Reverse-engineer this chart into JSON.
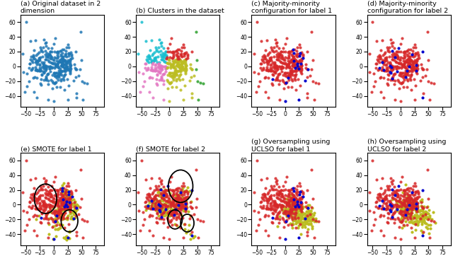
{
  "title_a": "(a) Original dataset in 2\ndimension",
  "title_b": "(b) Clusters in the dataset",
  "title_c": "(c) Majority-minority\nconfiguration for label 1",
  "title_d": "(d) Majority-minority\nconfiguration for label 2",
  "title_e": "(e) SMOTE for label 1",
  "title_f": "(f) SMOTE for label 2",
  "title_g": "(g) Oversampling using\nUCLSO for label 1",
  "title_h": "(h) Oversampling using\nUCLSO for label 2",
  "xlim": [
    -60,
    90
  ],
  "ylim": [
    -55,
    70
  ],
  "xticks": [
    -50,
    -25,
    0,
    25,
    50,
    75
  ],
  "yticks": [
    -40,
    -20,
    0,
    20,
    40,
    60
  ],
  "blue_color": "#1f77b4",
  "red_color": "#d62728",
  "blue_minority": "#0000cd",
  "cluster_colors": [
    "#17becf",
    "#e377c2",
    "#bcbd22",
    "#d62728",
    "#2ca02c"
  ],
  "smote_yellow": "#bcbd22",
  "seed": 42
}
